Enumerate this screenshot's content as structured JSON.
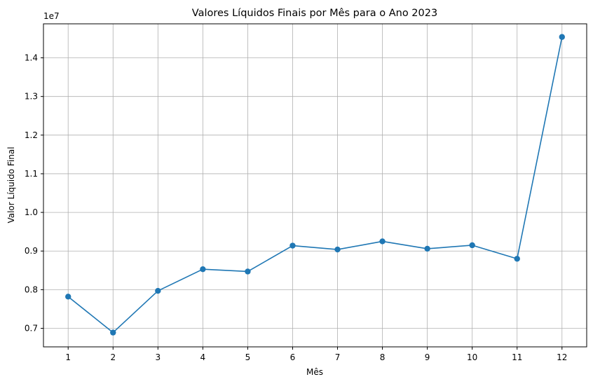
{
  "chart_data": {
    "type": "line",
    "title": "Valores Líquidos Finais por Mês para o Ano 2023",
    "xlabel": "Mês",
    "ylabel": "Valor Líquido Final",
    "y_offset_label": "1e7",
    "grid": true,
    "legend": "none",
    "color": "#1f77b4",
    "x": [
      1,
      2,
      3,
      4,
      5,
      6,
      7,
      8,
      9,
      10,
      11,
      12
    ],
    "y": [
      7820000,
      6890000,
      7970000,
      8530000,
      8470000,
      9140000,
      9040000,
      9250000,
      9060000,
      9150000,
      8800000,
      14540000
    ],
    "xlim": [
      0.45,
      12.55
    ],
    "ylim": [
      6.52,
      14.88
    ],
    "y_scale": 10000000.0,
    "xticks": [
      "1",
      "2",
      "3",
      "4",
      "5",
      "6",
      "7",
      "8",
      "9",
      "10",
      "11",
      "12"
    ],
    "yticks": [
      "0.7",
      "0.8",
      "0.9",
      "1.0",
      "1.1",
      "1.2",
      "1.3",
      "1.4"
    ],
    "ytick_values": [
      0.7,
      0.8,
      0.9,
      1.0,
      1.1,
      1.2,
      1.3,
      1.4
    ]
  }
}
